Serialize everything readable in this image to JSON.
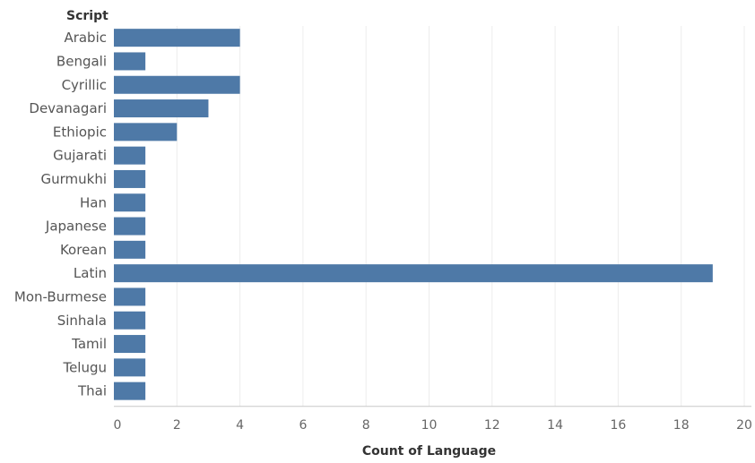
{
  "chart_data": {
    "type": "bar",
    "orientation": "horizontal",
    "y_header": "Script",
    "xlabel": "Count of Language",
    "categories": [
      "Arabic",
      "Bengali",
      "Cyrillic",
      "Devanagari",
      "Ethiopic",
      "Gujarati",
      "Gurmukhi",
      "Han",
      "Japanese",
      "Korean",
      "Latin",
      "Mon-Burmese",
      "Sinhala",
      "Tamil",
      "Telugu",
      "Thai"
    ],
    "values": [
      4,
      1,
      4,
      3,
      2,
      1,
      1,
      1,
      1,
      1,
      19,
      1,
      1,
      1,
      1,
      1
    ],
    "xlim": [
      0,
      20
    ],
    "xticks": [
      0,
      2,
      4,
      6,
      8,
      10,
      12,
      14,
      16,
      18,
      20
    ],
    "grid": "vertical",
    "bar_color": "#4e79a7"
  }
}
